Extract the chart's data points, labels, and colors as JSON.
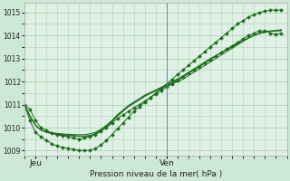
{
  "background_color": "#cde8d4",
  "plot_bg_color": "#dff0e4",
  "grid_color": "#b0d4b8",
  "line_color": "#1a6b1a",
  "xlabel": "Pression niveau de la mer( hPa )",
  "yticks": [
    1009,
    1010,
    1011,
    1012,
    1013,
    1014,
    1015
  ],
  "ylim": [
    1008.8,
    1015.4
  ],
  "xlim": [
    0,
    48
  ],
  "xtick_positions": [
    2,
    26
  ],
  "xtick_labels": [
    "Jeu",
    "Ven"
  ],
  "vline_x": 26,
  "n_x_points": 48,
  "series": [
    {
      "x": [
        0,
        1,
        2,
        3,
        4,
        5,
        6,
        7,
        8,
        9,
        10,
        11,
        12,
        13,
        14,
        15,
        16,
        17,
        18,
        19,
        20,
        21,
        22,
        23,
        24,
        25,
        26,
        27,
        28,
        29,
        30,
        31,
        32,
        33,
        34,
        35,
        36,
        37,
        38,
        39,
        40,
        41,
        42,
        43,
        44,
        45,
        46,
        47
      ],
      "y": [
        1011.0,
        1010.8,
        1010.3,
        1010.0,
        1009.9,
        1009.75,
        1009.7,
        1009.65,
        1009.6,
        1009.55,
        1009.5,
        1009.55,
        1009.6,
        1009.7,
        1009.85,
        1010.0,
        1010.2,
        1010.4,
        1010.55,
        1010.7,
        1010.85,
        1011.0,
        1011.15,
        1011.3,
        1011.45,
        1011.6,
        1011.75,
        1011.9,
        1012.05,
        1012.2,
        1012.35,
        1012.5,
        1012.65,
        1012.8,
        1012.95,
        1013.1,
        1013.25,
        1013.4,
        1013.55,
        1013.7,
        1013.85,
        1014.0,
        1014.1,
        1014.2,
        1014.2,
        1014.1,
        1014.05,
        1014.1
      ],
      "markers": true
    },
    {
      "x": [
        0,
        1,
        2,
        3,
        4,
        5,
        6,
        7,
        8,
        9,
        10,
        11,
        12,
        13,
        14,
        15,
        16,
        17,
        18,
        19,
        20,
        21,
        22,
        23,
        24,
        25,
        26,
        27,
        28,
        29,
        30,
        31,
        32,
        33,
        34,
        35,
        36,
        37,
        38,
        39,
        40,
        41,
        42,
        43,
        44,
        45,
        46,
        47
      ],
      "y": [
        1011.0,
        1010.5,
        1010.1,
        1009.9,
        1009.8,
        1009.75,
        1009.7,
        1009.68,
        1009.66,
        1009.64,
        1009.62,
        1009.6,
        1009.65,
        1009.75,
        1009.9,
        1010.1,
        1010.3,
        1010.55,
        1010.75,
        1010.95,
        1011.1,
        1011.25,
        1011.4,
        1011.5,
        1011.6,
        1011.7,
        1011.8,
        1011.9,
        1012.0,
        1012.1,
        1012.25,
        1012.4,
        1012.55,
        1012.7,
        1012.85,
        1013.0,
        1013.15,
        1013.3,
        1013.45,
        1013.6,
        1013.75,
        1013.9,
        1014.0,
        1014.1,
        1014.15,
        1014.2,
        1014.2,
        1014.2
      ],
      "markers": false
    },
    {
      "x": [
        0,
        1,
        2,
        3,
        4,
        5,
        6,
        7,
        8,
        9,
        10,
        11,
        12,
        13,
        14,
        15,
        16,
        17,
        18,
        19,
        20,
        21,
        22,
        23,
        24,
        25,
        26,
        27,
        28,
        29,
        30,
        31,
        32,
        33,
        34,
        35,
        36,
        37,
        38,
        39,
        40,
        41,
        42,
        43,
        44,
        45,
        46,
        47
      ],
      "y": [
        1011.0,
        1010.5,
        1010.1,
        1009.9,
        1009.8,
        1009.75,
        1009.72,
        1009.7,
        1009.68,
        1009.66,
        1009.64,
        1009.64,
        1009.66,
        1009.72,
        1009.85,
        1010.05,
        1010.25,
        1010.5,
        1010.7,
        1010.9,
        1011.05,
        1011.2,
        1011.35,
        1011.48,
        1011.6,
        1011.72,
        1011.83,
        1011.95,
        1012.07,
        1012.2,
        1012.35,
        1012.5,
        1012.65,
        1012.8,
        1012.95,
        1013.1,
        1013.25,
        1013.4,
        1013.52,
        1013.65,
        1013.78,
        1013.9,
        1014.0,
        1014.1,
        1014.15,
        1014.18,
        1014.2,
        1014.22
      ],
      "markers": false
    },
    {
      "x": [
        0,
        1,
        2,
        3,
        4,
        5,
        6,
        7,
        8,
        9,
        10,
        11,
        12,
        13,
        14,
        15,
        16,
        17,
        18,
        19,
        20,
        21,
        22,
        23,
        24,
        25,
        26,
        27,
        28,
        29,
        30,
        31,
        32,
        33,
        34,
        35,
        36,
        37,
        38,
        39,
        40,
        41,
        42,
        43,
        44,
        45,
        46,
        47
      ],
      "y": [
        1011.0,
        1010.5,
        1010.1,
        1009.9,
        1009.82,
        1009.78,
        1009.75,
        1009.73,
        1009.71,
        1009.7,
        1009.69,
        1009.7,
        1009.73,
        1009.8,
        1009.93,
        1010.1,
        1010.3,
        1010.55,
        1010.75,
        1010.95,
        1011.1,
        1011.25,
        1011.4,
        1011.52,
        1011.63,
        1011.75,
        1011.87,
        1012.0,
        1012.12,
        1012.25,
        1012.4,
        1012.55,
        1012.7,
        1012.85,
        1013.0,
        1013.12,
        1013.25,
        1013.38,
        1013.5,
        1013.62,
        1013.75,
        1013.88,
        1014.0,
        1014.08,
        1014.13,
        1014.18,
        1014.22,
        1014.25
      ],
      "markers": false
    },
    {
      "x": [
        0,
        1,
        2,
        3,
        4,
        5,
        6,
        7,
        8,
        9,
        10,
        11,
        12,
        13,
        14,
        15,
        16,
        17,
        18,
        19,
        20,
        21,
        22,
        23,
        24,
        25,
        26,
        27,
        28,
        29,
        30,
        31,
        32,
        33,
        34,
        35,
        36,
        37,
        38,
        39,
        40,
        41,
        42,
        43,
        44,
        45,
        46,
        47
      ],
      "y": [
        1011.0,
        1010.3,
        1009.8,
        1009.6,
        1009.45,
        1009.3,
        1009.2,
        1009.15,
        1009.1,
        1009.05,
        1009.02,
        1009.0,
        1009.02,
        1009.1,
        1009.25,
        1009.45,
        1009.7,
        1009.95,
        1010.2,
        1010.45,
        1010.7,
        1010.9,
        1011.1,
        1011.3,
        1011.5,
        1011.7,
        1011.9,
        1012.1,
        1012.3,
        1012.5,
        1012.7,
        1012.9,
        1013.1,
        1013.3,
        1013.5,
        1013.7,
        1013.9,
        1014.1,
        1014.3,
        1014.5,
        1014.65,
        1014.8,
        1014.9,
        1015.0,
        1015.05,
        1015.1,
        1015.1,
        1015.1
      ],
      "markers": true
    }
  ]
}
